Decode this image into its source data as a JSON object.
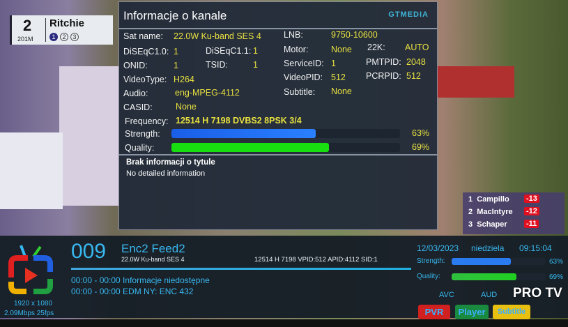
{
  "scoreboard": {
    "hole": "2",
    "distance": "201M",
    "player": "Ritchie",
    "shots": [
      "1",
      "2",
      "3"
    ]
  },
  "leaderboard": [
    {
      "pos": "1",
      "name": "Campillo",
      "score": "-13"
    },
    {
      "pos": "2",
      "name": "MacIntyre",
      "score": "-12"
    },
    {
      "pos": "3",
      "name": "Schaper",
      "score": "-11"
    }
  ],
  "info": {
    "title": "Informacje o kanale",
    "brand": "GTMEDIA",
    "sat_name_label": "Sat name:",
    "sat_name": "22.0W Ku-band SES 4",
    "lnb_label": "LNB:",
    "lnb": "9750-10600",
    "diseqc10_label": "DiSEqC1.0:",
    "diseqc10": "1",
    "diseqc11_label": "DiSEqC1.1:",
    "diseqc11": "1",
    "motor_label": "Motor:",
    "motor": "None",
    "k22_label": "22K:",
    "k22": "AUTO",
    "onid_label": "ONID:",
    "onid": "1",
    "tsid_label": "TSID:",
    "tsid": "1",
    "serviceid_label": "ServiceID:",
    "serviceid": "1",
    "pmtpid_label": "PMTPID:",
    "pmtpid": "2048",
    "videotype_label": "VideoType:",
    "videotype": "H264",
    "videopid_label": "VideoPID:",
    "videopid": "512",
    "pcrpid_label": "PCRPID:",
    "pcrpid": "512",
    "audio_label": "Audio:",
    "audio": "eng-MPEG-4112",
    "subtitle_label": "Subtitle:",
    "subtitle": "None",
    "casid_label": "CASID:",
    "casid": "None",
    "frequency_label": "Frequency:",
    "frequency": "12514 H 7198  DVBS2 8PSK 3/4",
    "strength_label": "Strength:",
    "strength": "63%",
    "strength_value": 63,
    "quality_label": "Quality:",
    "quality": "69%",
    "quality_value": 69,
    "epg_title": "Brak informacji o tytule",
    "epg_desc": "No detailed information"
  },
  "bar": {
    "channel_number": "009",
    "channel_name": "Enc2 Feed2",
    "satellite": "22.0W Ku-band SES 4",
    "tech": "12514 H 7198    VPID:512   APID:4112  SID:1",
    "epg": [
      "00:00 - 00:00 Informacje niedostępne",
      "00:00 - 00:00 EDM NY: ENC 432"
    ],
    "resolution": "1920 x 1080",
    "bitrate": "2.09Mbps 25fps",
    "date": "12/03/2023",
    "day": "niedziela",
    "time": "09:15:04",
    "strength_label": "Strength:",
    "strength": "63%",
    "strength_value": 63,
    "quality_label": "Quality:",
    "quality": "69%",
    "quality_value": 69,
    "avc": "AVC",
    "aud": "AUD",
    "buttons": {
      "pvr": "PVR",
      "player": "Player",
      "subtitle": "Subtitle"
    }
  },
  "watermark": "PRO TV",
  "colors": {
    "accent": "#38b8f0",
    "value": "#e8e040",
    "strength": "#1e6ef0",
    "quality": "#18e010",
    "pvr": "#d02020",
    "player": "#1a8a40",
    "subtitle": "#e8c010"
  }
}
